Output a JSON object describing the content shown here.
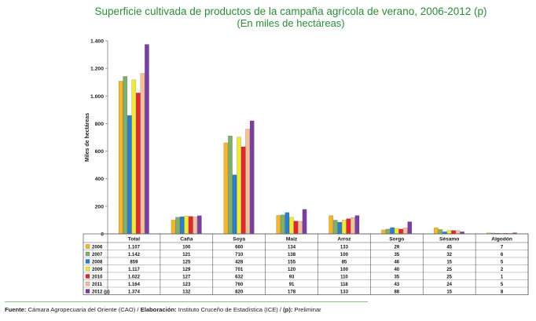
{
  "header": {
    "title": "Superficie cultivada de productos de la campaña agrícola de verano, 2006-2012 (p)",
    "subtitle": "(En miles de hectáreas)"
  },
  "footer": {
    "source_label": "Fuente:",
    "source_text": "Cámara Agropecuaria del Oriente (CAO) /",
    "elab_label": "Elaboración:",
    "elab_text": "Instituto Cruceño de Estadística (ICE) /",
    "prelim_label": "(p):",
    "prelim_text": "Preliminar"
  },
  "chart_data": {
    "type": "bar",
    "title": "Superficie cultivada de productos de la campaña agrícola de verano, 2006-2012 (p)",
    "subtitle": "(En miles de hectáreas)",
    "ylabel": "Miles de hectáreas",
    "xlabel": "",
    "ylim": [
      0,
      1400
    ],
    "yticks": [
      0,
      200,
      400,
      600,
      800,
      1000,
      1200,
      1400
    ],
    "ytick_labels": [
      "0",
      "200",
      "400",
      "600",
      "800",
      "1.000",
      "1.200",
      "1.400"
    ],
    "grid": false,
    "legend": "data table below chart",
    "categories": [
      "Total",
      "Caña",
      "Soya",
      "Maíz",
      "Arroz",
      "Sorgo",
      "Sésamo",
      "Algodón"
    ],
    "series": [
      {
        "name": "2006",
        "color": "#f5b52e",
        "values": [
          1107,
          100,
          660,
          134,
          133,
          29,
          45,
          7
        ],
        "labels": [
          "1.107",
          "100",
          "660",
          "134",
          "133",
          "29",
          "45",
          "7"
        ]
      },
      {
        "name": "2007",
        "color": "#7fb069",
        "values": [
          1142,
          121,
          710,
          138,
          100,
          35,
          32,
          6
        ],
        "labels": [
          "1.142",
          "121",
          "710",
          "138",
          "100",
          "35",
          "32",
          "6"
        ]
      },
      {
        "name": "2008",
        "color": "#2b7fc4",
        "values": [
          859,
          125,
          428,
          155,
          85,
          46,
          15,
          5
        ],
        "labels": [
          "859",
          "125",
          "428",
          "155",
          "85",
          "46",
          "15",
          "5"
        ]
      },
      {
        "name": "2009",
        "color": "#f2ea3a",
        "values": [
          1117,
          129,
          701,
          120,
          100,
          40,
          25,
          2
        ],
        "labels": [
          "1.117",
          "129",
          "701",
          "120",
          "100",
          "40",
          "25",
          "2"
        ]
      },
      {
        "name": "2010",
        "color": "#e0282e",
        "values": [
          1022,
          127,
          632,
          93,
          110,
          35,
          25,
          1
        ],
        "labels": [
          "1.022",
          "127",
          "632",
          "93",
          "110",
          "35",
          "25",
          "1"
        ]
      },
      {
        "name": "2011",
        "color": "#f3c09c",
        "values": [
          1164,
          123,
          760,
          91,
          118,
          43,
          24,
          5
        ],
        "labels": [
          "1.164",
          "123",
          "760",
          "91",
          "118",
          "43",
          "24",
          "5"
        ]
      },
      {
        "name": "2012 (p)",
        "color": "#7b3fa0",
        "values": [
          1374,
          132,
          820,
          178,
          133,
          88,
          15,
          8
        ],
        "labels": [
          "1.374",
          "132",
          "820",
          "178",
          "133",
          "88",
          "15",
          "8"
        ]
      }
    ]
  }
}
